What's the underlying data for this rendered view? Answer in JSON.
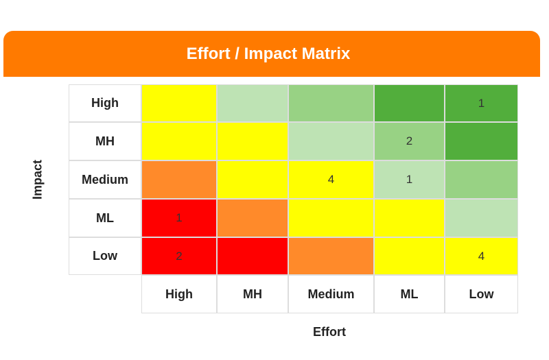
{
  "chart_data": {
    "type": "heatmap",
    "title": "Effort / Impact Matrix",
    "xlabel": "Effort",
    "ylabel": "Impact",
    "x_categories": [
      "High",
      "MH",
      "Medium",
      "ML",
      "Low"
    ],
    "y_categories": [
      "High",
      "MH",
      "Medium",
      "ML",
      "Low"
    ],
    "palette": {
      "yellow": "#FFFF00",
      "light-green": "#BEE3B4",
      "mid-green": "#98D284",
      "dark-green": "#52AE3C",
      "orange": "#FF8A2A",
      "red": "#FF0000"
    },
    "cell_colors": [
      [
        "yellow",
        "light-green",
        "mid-green",
        "dark-green",
        "dark-green"
      ],
      [
        "yellow",
        "yellow",
        "light-green",
        "mid-green",
        "dark-green"
      ],
      [
        "orange",
        "yellow",
        "yellow",
        "light-green",
        "mid-green"
      ],
      [
        "red",
        "orange",
        "yellow",
        "yellow",
        "light-green"
      ],
      [
        "red",
        "red",
        "orange",
        "yellow",
        "yellow"
      ]
    ],
    "values": [
      [
        "",
        "",
        "",
        "",
        "1"
      ],
      [
        "",
        "",
        "",
        "2",
        ""
      ],
      [
        "",
        "",
        "4",
        "1",
        ""
      ],
      [
        "1",
        "",
        "",
        "",
        ""
      ],
      [
        "2",
        "",
        "",
        "",
        "4"
      ]
    ]
  },
  "banner_color": "#FF7A00"
}
